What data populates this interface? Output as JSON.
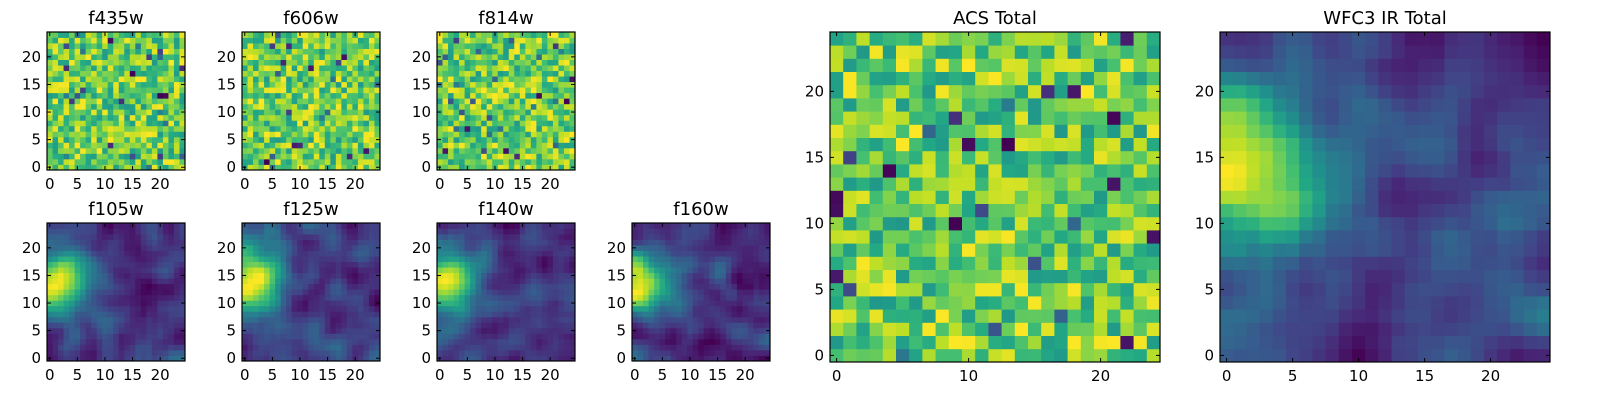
{
  "chart_data": [
    {
      "type": "heatmap",
      "title": "f435w",
      "rows": 25,
      "cols": 25,
      "xticks": [
        0,
        5,
        10,
        15,
        20
      ],
      "yticks": [
        0,
        5,
        10,
        15,
        20
      ],
      "style": "noise",
      "colormap": "viridis",
      "origin": "lower"
    },
    {
      "type": "heatmap",
      "title": "f606w",
      "rows": 25,
      "cols": 25,
      "xticks": [
        0,
        5,
        10,
        15,
        20
      ],
      "yticks": [
        0,
        5,
        10,
        15,
        20
      ],
      "style": "noise",
      "colormap": "viridis",
      "origin": "lower"
    },
    {
      "type": "heatmap",
      "title": "f814w",
      "rows": 25,
      "cols": 25,
      "xticks": [
        0,
        5,
        10,
        15,
        20
      ],
      "yticks": [
        0,
        5,
        10,
        15,
        20
      ],
      "style": "noise",
      "colormap": "viridis",
      "origin": "lower"
    },
    {
      "type": "heatmap",
      "title": "f105w",
      "rows": 25,
      "cols": 25,
      "xticks": [
        0,
        5,
        10,
        15,
        20
      ],
      "yticks": [
        0,
        5,
        10,
        15,
        20
      ],
      "style": "smooth",
      "colormap": "viridis",
      "origin": "lower"
    },
    {
      "type": "heatmap",
      "title": "f125w",
      "rows": 25,
      "cols": 25,
      "xticks": [
        0,
        5,
        10,
        15,
        20
      ],
      "yticks": [
        0,
        5,
        10,
        15,
        20
      ],
      "style": "smooth",
      "colormap": "viridis",
      "origin": "lower"
    },
    {
      "type": "heatmap",
      "title": "f140w",
      "rows": 25,
      "cols": 25,
      "xticks": [
        0,
        5,
        10,
        15,
        20
      ],
      "yticks": [
        0,
        5,
        10,
        15,
        20
      ],
      "style": "smooth",
      "colormap": "viridis",
      "origin": "lower"
    },
    {
      "type": "heatmap",
      "title": "f160w",
      "rows": 25,
      "cols": 25,
      "xticks": [
        0,
        5,
        10,
        15,
        20
      ],
      "yticks": [
        0,
        5,
        10,
        15,
        20
      ],
      "style": "smooth",
      "colormap": "viridis",
      "origin": "lower"
    },
    {
      "type": "heatmap",
      "title": "ACS Total",
      "rows": 25,
      "cols": 25,
      "xticks": [
        0,
        10,
        20
      ],
      "yticks": [
        0,
        5,
        10,
        15,
        20
      ],
      "style": "noise",
      "colormap": "viridis",
      "origin": "lower"
    },
    {
      "type": "heatmap",
      "title": "WFC3 IR Total",
      "rows": 25,
      "cols": 25,
      "xticks": [
        0,
        5,
        10,
        15,
        20
      ],
      "yticks": [
        0,
        5,
        10,
        15,
        20
      ],
      "style": "smooth",
      "colormap": "viridis",
      "origin": "lower"
    }
  ]
}
